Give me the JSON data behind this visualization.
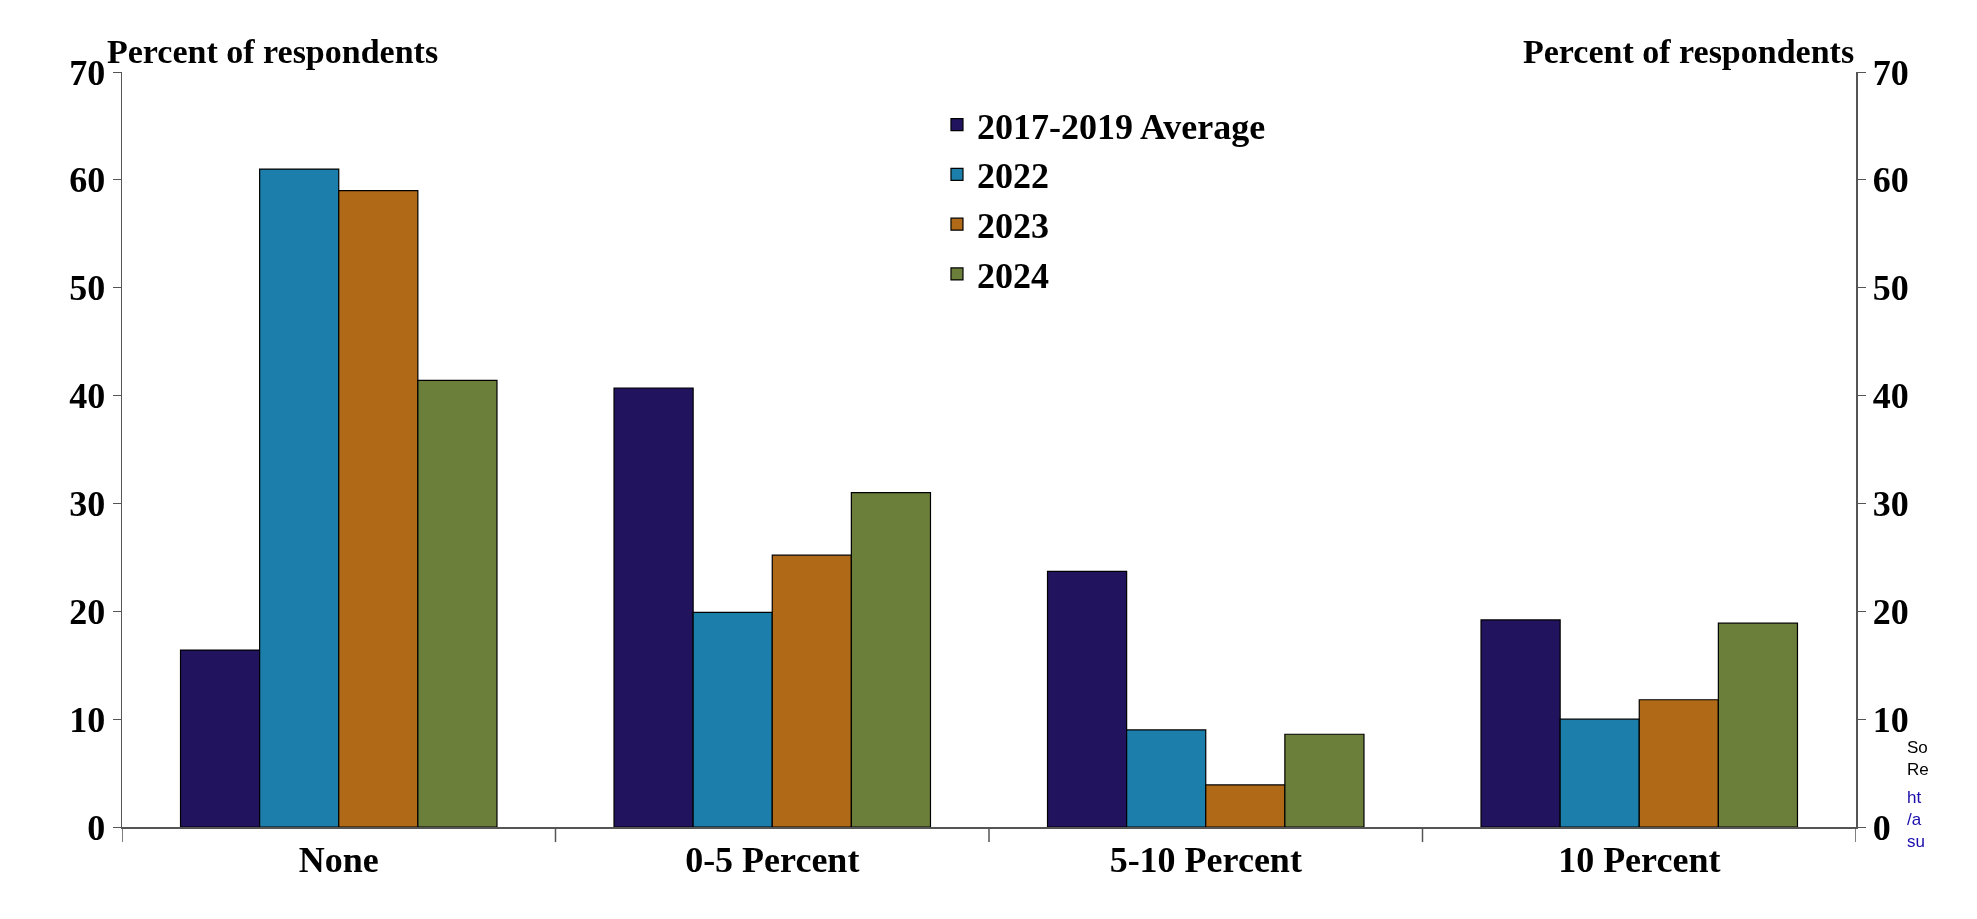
{
  "chart_data": {
    "type": "bar",
    "ylabel": "Percent of respondents",
    "y2label": "Percent of respondents",
    "categories": [
      "None",
      "0-5 Percent",
      "5-10 Percent",
      "10 Percent"
    ],
    "series": [
      {
        "name": "2017-2019 Average",
        "color": "#22135e",
        "values": [
          16.4,
          40.7,
          23.7,
          19.2
        ]
      },
      {
        "name": "2022",
        "color": "#1c7fab",
        "values": [
          61,
          19.9,
          9,
          10
        ]
      },
      {
        "name": "2023",
        "color": "#b06a17",
        "values": [
          59,
          25.2,
          3.9,
          11.8
        ]
      },
      {
        "name": "2024",
        "color": "#6b7f3a",
        "values": [
          41.4,
          31,
          8.6,
          18.9
        ]
      }
    ],
    "ylim": [
      0,
      70
    ],
    "yticks": [
      0,
      10,
      20,
      30,
      40,
      50,
      60,
      70
    ],
    "y2lim": [
      0,
      70
    ],
    "y2ticks": [
      0,
      10,
      20,
      30,
      40,
      50,
      60,
      70
    ],
    "grid": false,
    "legend": "top right",
    "annotations": [
      "So\nRe",
      "ht\n/a\nsu"
    ]
  }
}
